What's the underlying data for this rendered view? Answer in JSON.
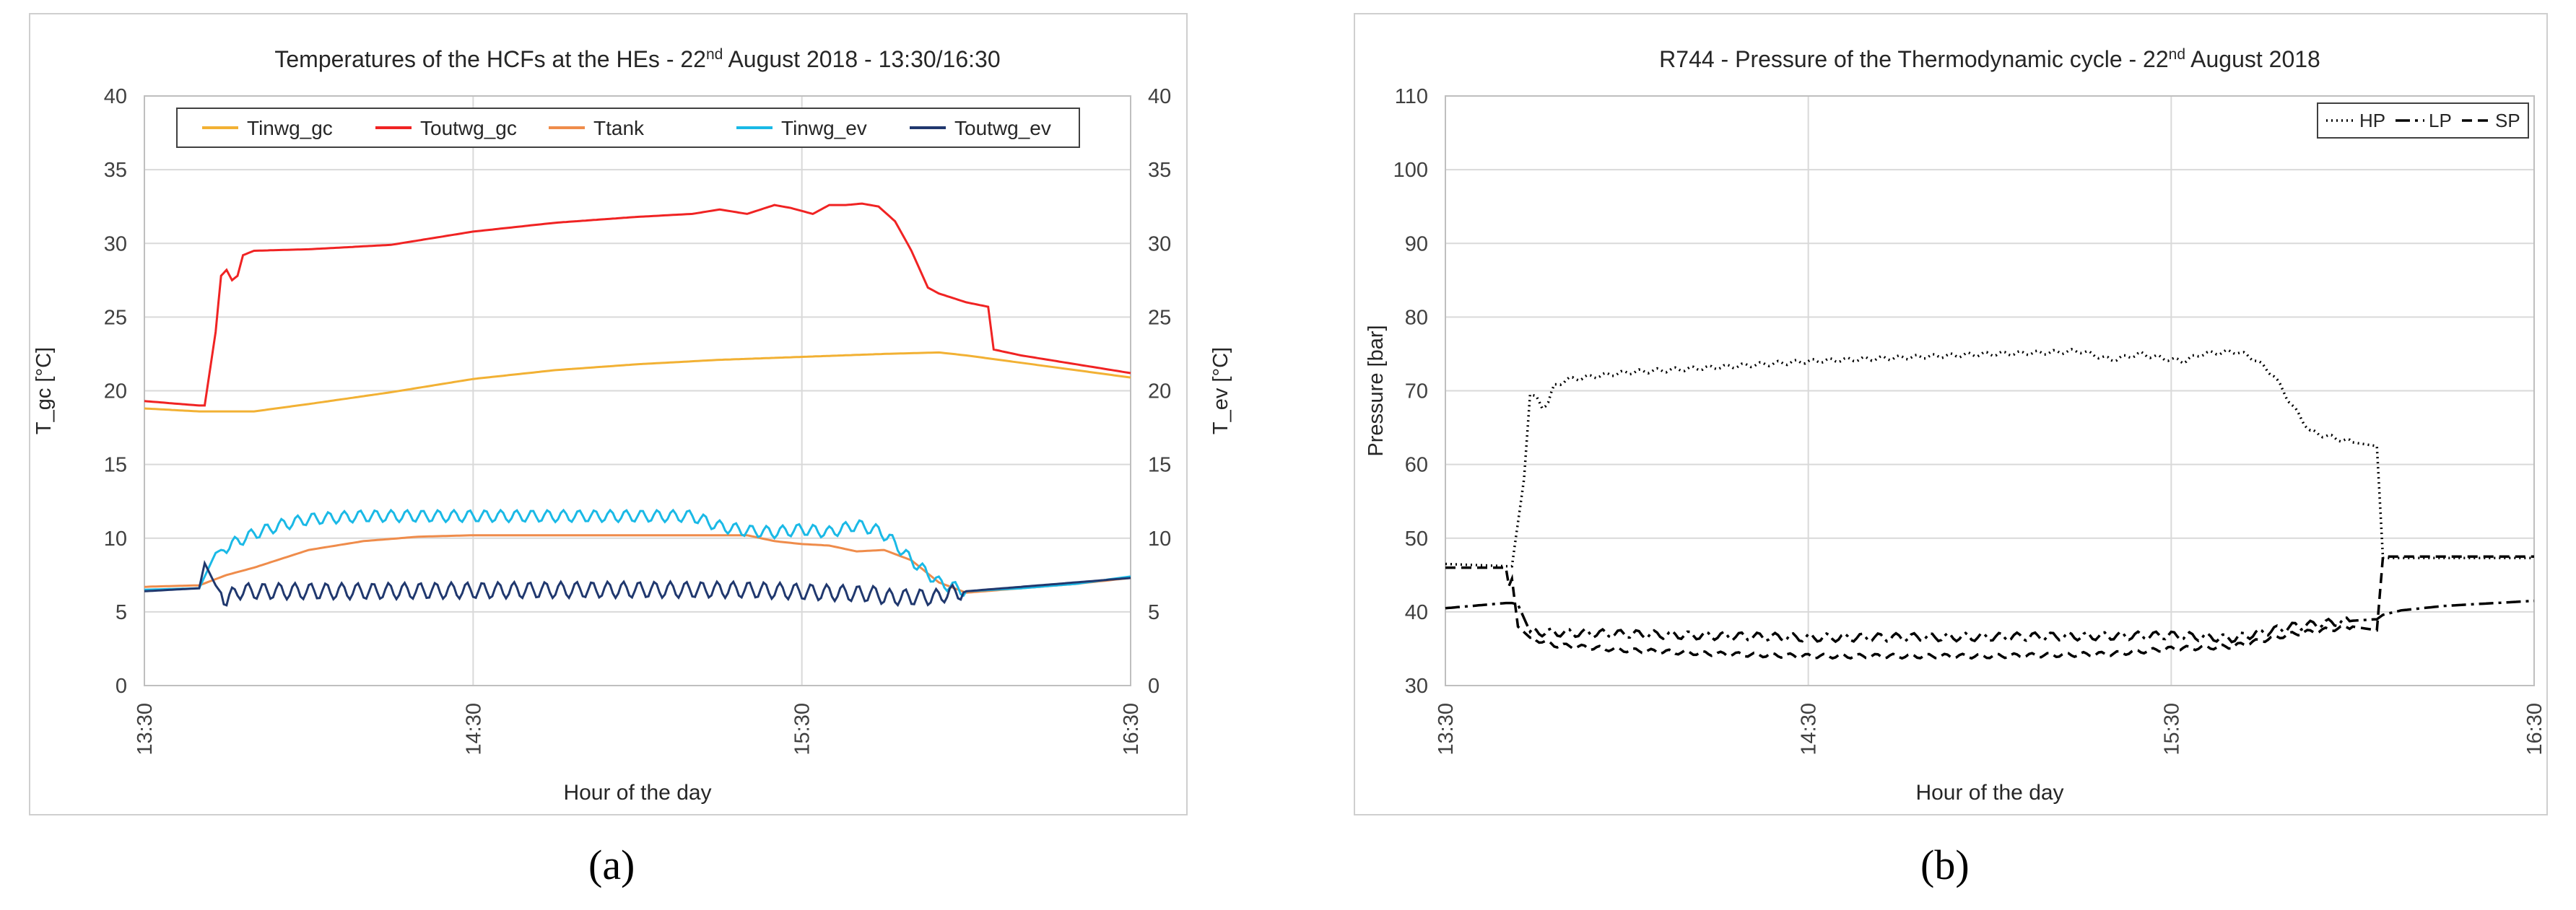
{
  "captions": {
    "a": "(a)",
    "b": "(b)"
  },
  "chart_data": [
    {
      "type": "line",
      "title": "Temperatures of the HCFs at the HEs - 22",
      "title_sup": "nd",
      "title_rest": " August 2018 - 13:30/16:30",
      "xlabel": "Hour of the day",
      "ylabel": "T_gc [°C]",
      "ylabel_right": "T_ev [°C]",
      "ylim": [
        0,
        40
      ],
      "yticks": [
        0,
        5,
        10,
        15,
        20,
        25,
        30,
        35,
        40
      ],
      "xlim": [
        0,
        180
      ],
      "xticks": [
        0,
        60,
        120,
        180
      ],
      "xtick_labels": [
        "13:30",
        "14:30",
        "15:30",
        "16:30"
      ],
      "grid": true,
      "legend_position": "top",
      "series": [
        {
          "name": "Tinwg_gc",
          "color": "#f2b134",
          "style": "solid",
          "x": [
            0,
            10,
            20,
            30,
            45,
            60,
            75,
            90,
            105,
            120,
            135,
            145,
            150,
            160,
            170,
            180
          ],
          "y": [
            18.8,
            18.6,
            18.6,
            19.1,
            19.9,
            20.8,
            21.4,
            21.8,
            22.1,
            22.3,
            22.5,
            22.6,
            22.4,
            21.9,
            21.4,
            20.9
          ],
          "oscillation": 0
        },
        {
          "name": "Toutwg_gc",
          "color": "#f02323",
          "style": "solid",
          "x": [
            0,
            10,
            11,
            13,
            14,
            15,
            16,
            17,
            18,
            20,
            30,
            45,
            60,
            75,
            90,
            100,
            105,
            110,
            115,
            118,
            122,
            125,
            128,
            131,
            134,
            137,
            140,
            143,
            145,
            150,
            154,
            155,
            160,
            170,
            180
          ],
          "y": [
            19.3,
            19.0,
            19.0,
            24.0,
            27.8,
            28.2,
            27.5,
            27.8,
            29.2,
            29.5,
            29.6,
            29.9,
            30.8,
            31.4,
            31.8,
            32.0,
            32.3,
            32.0,
            32.6,
            32.4,
            32.0,
            32.6,
            32.6,
            32.7,
            32.5,
            31.5,
            29.5,
            27.0,
            26.6,
            26.0,
            25.7,
            22.8,
            22.4,
            21.8,
            21.2
          ],
          "oscillation": 0
        },
        {
          "name": "Ttank",
          "color": "#ef8c4b",
          "style": "solid",
          "x": [
            0,
            10,
            15,
            20,
            30,
            40,
            50,
            60,
            80,
            100,
            110,
            115,
            120,
            125,
            130,
            135,
            140,
            145,
            150,
            160,
            170,
            180
          ],
          "y": [
            6.7,
            6.8,
            7.5,
            8.0,
            9.2,
            9.8,
            10.1,
            10.2,
            10.2,
            10.2,
            10.2,
            9.8,
            9.6,
            9.5,
            9.1,
            9.2,
            8.5,
            7.0,
            6.3,
            6.6,
            6.9,
            7.3
          ],
          "oscillation": 0
        },
        {
          "name": "Tinwg_ev",
          "color": "#1ab9e6",
          "style": "solid",
          "x": [
            0,
            10,
            13,
            16,
            20,
            25,
            30,
            40,
            60,
            80,
            100,
            105,
            110,
            115,
            120,
            125,
            130,
            134,
            136,
            140,
            145,
            150,
            160,
            170,
            180
          ],
          "y": [
            6.5,
            6.6,
            9.0,
            9.6,
            10.3,
            10.9,
            11.3,
            11.5,
            11.5,
            11.5,
            11.5,
            10.8,
            10.5,
            10.4,
            10.6,
            10.4,
            10.9,
            10.5,
            10.0,
            8.5,
            7.0,
            6.4,
            6.6,
            6.9,
            7.4
          ],
          "oscillation": 0.4
        },
        {
          "name": "Toutwg_ev",
          "color": "#20386e",
          "style": "solid",
          "x": [
            0,
            10,
            11,
            13,
            15,
            17,
            40,
            80,
            110,
            125,
            134,
            135,
            145,
            146,
            150,
            160,
            170,
            180
          ],
          "y": [
            6.4,
            6.6,
            8.3,
            6.8,
            5.8,
            6.4,
            6.4,
            6.5,
            6.5,
            6.3,
            6.2,
            6.0,
            6.0,
            6.2,
            6.4,
            6.7,
            7.0,
            7.3
          ],
          "oscillation": 0.55
        }
      ]
    },
    {
      "type": "line",
      "title": "R744 - Pressure of the Thermodynamic cycle - 22",
      "title_sup": "nd",
      "title_rest": " August 2018",
      "xlabel": "Hour of the day",
      "ylabel": "Pressure [bar]",
      "ylim": [
        30,
        110
      ],
      "yticks": [
        30,
        40,
        50,
        60,
        70,
        80,
        90,
        100,
        110
      ],
      "xlim": [
        0,
        180
      ],
      "xticks": [
        0,
        60,
        120,
        180
      ],
      "xtick_labels": [
        "13:30",
        "14:30",
        "15:30",
        "16:30"
      ],
      "grid": true,
      "legend_position": "top-right",
      "series": [
        {
          "name": "HP",
          "color": "#000000",
          "style": "dotted",
          "x": [
            0,
            10,
            11,
            13,
            14,
            15,
            16,
            17,
            18,
            20,
            30,
            45,
            60,
            75,
            90,
            100,
            105,
            110,
            115,
            118,
            122,
            125,
            128,
            131,
            134,
            137,
            140,
            143,
            145,
            150,
            154,
            155,
            160,
            170,
            180
          ],
          "y": [
            46.5,
            46.2,
            46.2,
            58.0,
            69.5,
            69.0,
            67.8,
            68.5,
            70.6,
            71.5,
            72.5,
            73.2,
            74.0,
            74.5,
            75.0,
            75.2,
            75.4,
            74.2,
            75.0,
            74.5,
            74.0,
            75.0,
            75.2,
            75.3,
            74.2,
            72.0,
            68.0,
            64.5,
            64.0,
            63.0,
            62.5,
            47.3,
            47.3,
            47.3,
            47.3
          ],
          "oscillation": 0.3
        },
        {
          "name": "LP",
          "color": "#000000",
          "style": "dashdot",
          "x": [
            0,
            10,
            11,
            12,
            14,
            18,
            30,
            60,
            90,
            120,
            130,
            140,
            150,
            154,
            155,
            158,
            165,
            180
          ],
          "y": [
            40.5,
            41.2,
            41.2,
            41.0,
            37.3,
            37.2,
            37.0,
            36.5,
            36.6,
            36.8,
            36.4,
            38.0,
            38.8,
            39.0,
            39.6,
            40.2,
            40.8,
            41.5
          ],
          "oscillation": 0.55
        },
        {
          "name": "SP",
          "color": "#000000",
          "style": "dashed",
          "x": [
            0,
            10,
            10.5,
            11,
            12,
            14,
            18,
            30,
            45,
            60,
            90,
            110,
            120,
            130,
            140,
            150,
            154,
            155,
            158,
            170,
            180
          ],
          "y": [
            46.0,
            46.0,
            43.5,
            44.5,
            38.0,
            36.5,
            35.5,
            34.8,
            34.3,
            34.0,
            34.0,
            34.3,
            35.0,
            35.3,
            37.0,
            38.0,
            37.5,
            47.5,
            47.5,
            47.5,
            47.5
          ],
          "oscillation": 0.3
        }
      ]
    }
  ]
}
